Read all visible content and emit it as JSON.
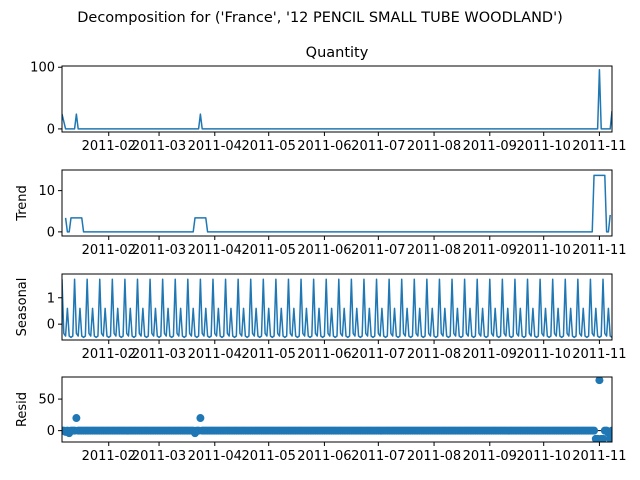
{
  "suptitle": "Decomposition for ('France', '12 PENCIL SMALL TUBE WOODLAND')",
  "accent_color": "#1f77b4",
  "chart_data": [
    {
      "type": "line",
      "title": "Quantity",
      "ylabel": "",
      "ylim": [
        -5,
        102
      ],
      "yticks": [
        0,
        100
      ],
      "xlim": [
        "2011-01-06",
        "2011-11-08"
      ],
      "xticks": [
        "2011-02",
        "2011-03",
        "2011-04",
        "2011-05",
        "2011-06",
        "2011-07",
        "2011-08",
        "2011-09",
        "2011-10",
        "2011-11"
      ],
      "series": [
        {
          "x": [
            "2011-01-06",
            "2011-01-08",
            "2011-01-13",
            "2011-01-14",
            "2011-01-15",
            "2011-03-23",
            "2011-03-24",
            "2011-03-25",
            "2011-10-31",
            "2011-11-01",
            "2011-11-02",
            "2011-11-07",
            "2011-11-08"
          ],
          "values": [
            24,
            0,
            0,
            24,
            0,
            0,
            24,
            0,
            0,
            96,
            0,
            0,
            29
          ]
        }
      ]
    },
    {
      "type": "line",
      "title": "",
      "ylabel": "Trend",
      "ylim": [
        -1,
        15
      ],
      "yticks": [
        0,
        10
      ],
      "xlim": [
        "2011-01-06",
        "2011-11-08"
      ],
      "xticks": [
        "2011-02",
        "2011-03",
        "2011-04",
        "2011-05",
        "2011-06",
        "2011-07",
        "2011-08",
        "2011-09",
        "2011-10",
        "2011-11"
      ],
      "series": [
        {
          "x": [
            "2011-01-08",
            "2011-01-09",
            "2011-01-10",
            "2011-01-11",
            "2011-01-17",
            "2011-01-18",
            "2011-03-20",
            "2011-03-21",
            "2011-03-27",
            "2011-03-28",
            "2011-10-28",
            "2011-10-29",
            "2011-11-04",
            "2011-11-05",
            "2011-11-06",
            "2011-11-07"
          ],
          "values": [
            3.4,
            0,
            0,
            3.4,
            3.4,
            0,
            0,
            3.4,
            3.4,
            0,
            0,
            13.7,
            13.7,
            0,
            0,
            4.1
          ]
        }
      ]
    },
    {
      "type": "line",
      "title": "",
      "ylabel": "Seasonal",
      "ylim": [
        -0.6,
        1.9
      ],
      "yticks": [
        0,
        1
      ],
      "xlim": [
        "2011-01-06",
        "2011-11-08"
      ],
      "xticks": [
        "2011-02",
        "2011-03",
        "2011-04",
        "2011-05",
        "2011-06",
        "2011-07",
        "2011-08",
        "2011-09",
        "2011-10",
        "2011-11"
      ],
      "series": [
        {
          "period_days": 7,
          "start": "2011-01-06",
          "end": "2011-11-08",
          "pattern": [
            1.7,
            -0.35,
            -0.45,
            0.6,
            -0.45,
            -0.5,
            -0.45
          ]
        }
      ]
    },
    {
      "type": "scatter",
      "title": "",
      "ylabel": "Resid",
      "ylim": [
        -18,
        85
      ],
      "yticks": [
        0,
        50
      ],
      "xlim": [
        "2011-01-06",
        "2011-11-08"
      ],
      "xticks": [
        "2011-02",
        "2011-03",
        "2011-04",
        "2011-05",
        "2011-06",
        "2011-07",
        "2011-08",
        "2011-09",
        "2011-10",
        "2011-11"
      ],
      "zero_line": true,
      "series": [
        {
          "start": "2011-01-06",
          "end": "2011-11-08",
          "baseline": 0,
          "points": [
            {
              "x": "2011-01-06",
              "y": 0
            },
            {
              "x": "2011-01-08",
              "y": -2
            },
            {
              "x": "2011-01-10",
              "y": -4
            },
            {
              "x": "2011-01-14",
              "y": 20
            },
            {
              "x": "2011-03-21",
              "y": -4
            },
            {
              "x": "2011-03-24",
              "y": 20
            },
            {
              "x": "2011-10-30",
              "y": -13
            },
            {
              "x": "2011-10-31",
              "y": -13
            },
            {
              "x": "2011-11-01",
              "y": 80
            },
            {
              "x": "2011-11-02",
              "y": -13
            },
            {
              "x": "2011-11-03",
              "y": -13
            },
            {
              "x": "2011-11-04",
              "y": 0
            },
            {
              "x": "2011-11-05",
              "y": 0
            },
            {
              "x": "2011-11-06",
              "y": -4
            },
            {
              "x": "2011-11-07",
              "y": -13
            }
          ]
        }
      ]
    }
  ]
}
